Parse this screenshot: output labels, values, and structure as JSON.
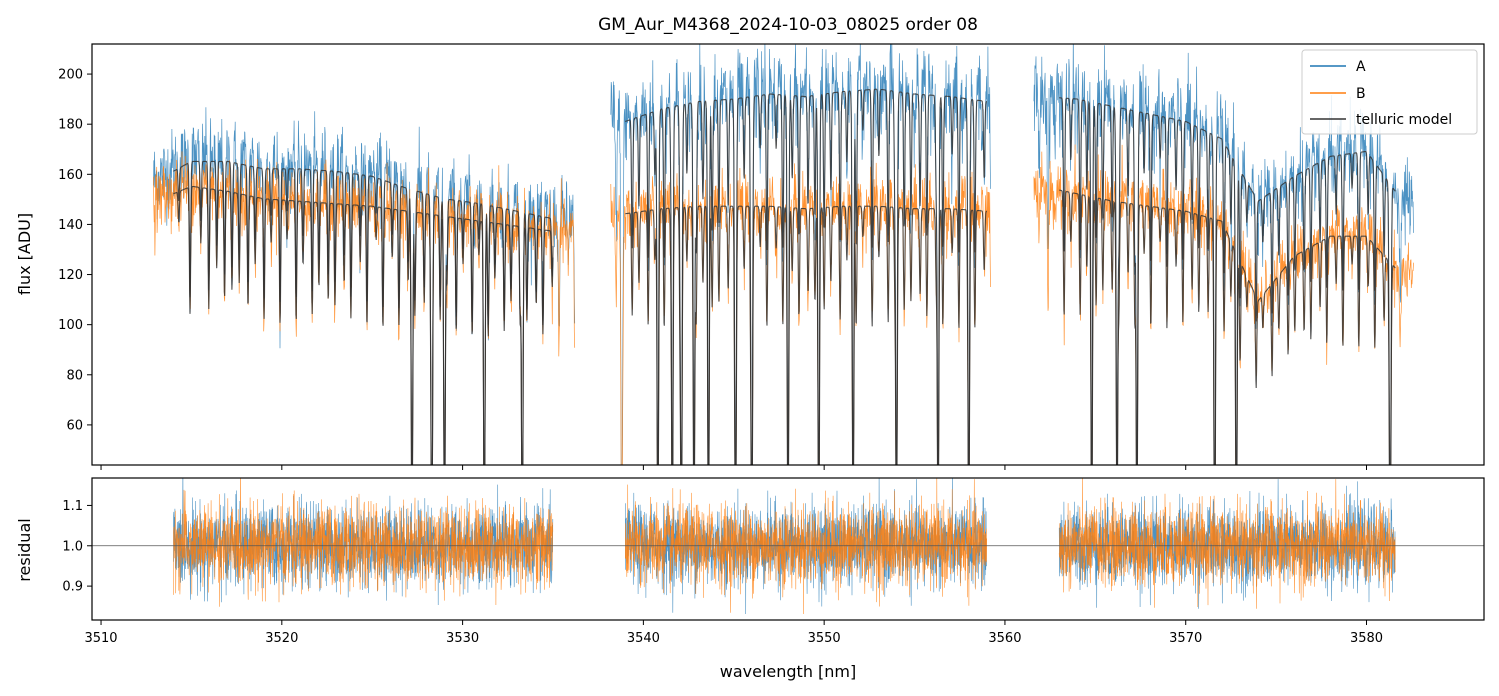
{
  "chart_data": [
    {
      "type": "line",
      "panel": "top",
      "title": "GM_Aur_M4368_2024-10-03_08025  order 08",
      "xlabel": "",
      "ylabel": "flux [ADU]",
      "xlim": [
        3509.5,
        3586.5
      ],
      "ylim": [
        44,
        212
      ],
      "yticks": [
        60,
        80,
        100,
        120,
        140,
        160,
        180,
        200
      ],
      "xticks": [
        3510,
        3520,
        3530,
        3540,
        3550,
        3560,
        3570,
        3580
      ],
      "legend_position": "top-right",
      "series": [
        {
          "name": "A",
          "color": "#1f77b4",
          "segments": [
            {
              "x_start": 3512.9,
              "x_end": 3536.2,
              "x": [
                3513,
                3515,
                3517,
                3519,
                3521,
                3523,
                3525,
                3527,
                3529,
                3531,
                3533,
                3535
              ],
              "y": [
                158,
                166,
                166,
                163,
                163,
                162,
                160,
                155,
                151,
                149,
                146,
                143
              ]
            },
            {
              "x_start": 3538.2,
              "x_end": 3559.2,
              "x": [
                3539,
                3541,
                3543,
                3545,
                3547,
                3549,
                3551,
                3553,
                3555,
                3557,
                3559
              ],
              "y": [
                182,
                187,
                190,
                191,
                193,
                192,
                194,
                195,
                193,
                192,
                190
              ]
            },
            {
              "x_start": 3561.6,
              "x_end": 3582.6,
              "x": [
                3562,
                3564,
                3566,
                3568,
                3570,
                3572,
                3574,
                3576,
                3578,
                3580,
                3582
              ],
              "y": [
                192,
                191,
                188,
                185,
                182,
                175,
                150,
                160,
                168,
                170,
                150
              ]
            }
          ]
        },
        {
          "name": "B",
          "color": "#ff7f0e",
          "segments": [
            {
              "x_start": 3512.9,
              "x_end": 3536.2,
              "x": [
                3513,
                3515,
                3517,
                3519,
                3521,
                3523,
                3525,
                3527,
                3529,
                3531,
                3533,
                3535
              ],
              "y": [
                150,
                156,
                154,
                151,
                150,
                149,
                148,
                146,
                144,
                142,
                140,
                138
              ]
            },
            {
              "x_start": 3538.2,
              "x_end": 3559.2,
              "x": [
                3539,
                3541,
                3543,
                3545,
                3547,
                3549,
                3551,
                3553,
                3555,
                3557,
                3559
              ],
              "y": [
                145,
                147,
                148,
                148,
                148,
                147,
                148,
                148,
                147,
                147,
                146
              ]
            },
            {
              "x_start": 3561.6,
              "x_end": 3582.6,
              "x": [
                3562,
                3564,
                3566,
                3568,
                3570,
                3572,
                3574,
                3576,
                3578,
                3580,
                3582
              ],
              "y": [
                156,
                153,
                150,
                148,
                146,
                142,
                110,
                128,
                136,
                136,
                120
              ]
            }
          ]
        },
        {
          "name": "telluric model",
          "color": "#333333",
          "segments": [
            {
              "x_start": 3514.0,
              "x_end": 3535.0,
              "continuum_upper": 166,
              "continuum_lower": 155
            },
            {
              "x_start": 3539.0,
              "x_end": 3559.0,
              "continuum_upper": 192,
              "continuum_lower": 146
            },
            {
              "x_start": 3563.0,
              "x_end": 3581.6,
              "continuum_upper": 188,
              "continuum_lower": 150
            }
          ],
          "strong_absorption_lines_nm": [
            3527.2,
            3528.3,
            3529.0,
            3531.2,
            3533.3,
            3538.8,
            3540.8,
            3541.6,
            3542.1,
            3542.8,
            3543.6,
            3545.1,
            3546.0,
            3548.0,
            3549.7,
            3551.6,
            3554.0,
            3556.3,
            3558.0,
            3564.8,
            3566.2,
            3567.3,
            3571.6,
            3572.8,
            3581.3
          ]
        }
      ]
    },
    {
      "type": "line",
      "panel": "bottom",
      "title": "",
      "xlabel": "wavelength [nm]",
      "ylabel": "residual",
      "xlim": [
        3509.5,
        3586.5
      ],
      "ylim": [
        0.816,
        1.168
      ],
      "yticks": [
        0.9,
        1.0,
        1.1
      ],
      "xticks": [
        3510,
        3520,
        3530,
        3540,
        3550,
        3560,
        3570,
        3580
      ],
      "reference_line": 1.0,
      "series": [
        {
          "name": "A",
          "color": "#1f77b4",
          "segments": [
            [
              3514.0,
              3535.0
            ],
            [
              3539.0,
              3559.0
            ],
            [
              3563.0,
              3581.6
            ]
          ],
          "mean": 1.0,
          "scatter": 0.05
        },
        {
          "name": "B",
          "color": "#ff7f0e",
          "segments": [
            [
              3514.0,
              3535.0
            ],
            [
              3539.0,
              3559.0
            ],
            [
              3563.0,
              3581.6
            ]
          ],
          "mean": 1.0,
          "scatter": 0.05
        }
      ]
    }
  ]
}
